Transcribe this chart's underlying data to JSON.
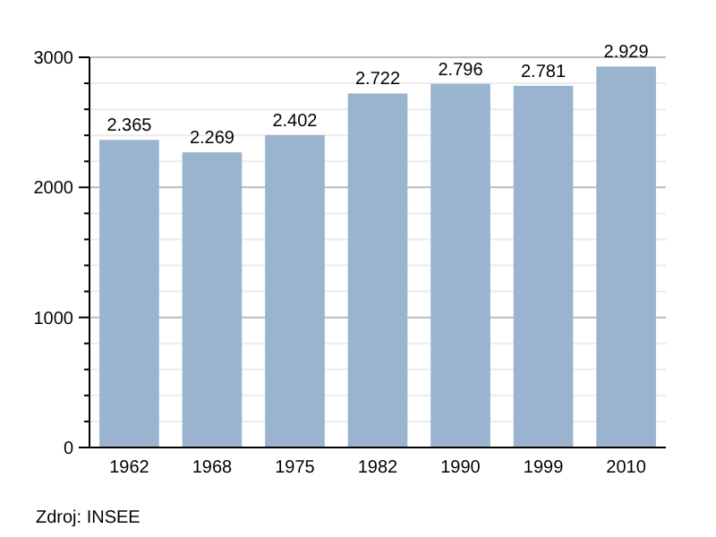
{
  "chart_data": {
    "type": "bar",
    "categories": [
      "1962",
      "1968",
      "1975",
      "1982",
      "1990",
      "1999",
      "2010"
    ],
    "values": [
      2365,
      2269,
      2402,
      2722,
      2796,
      2781,
      2929
    ],
    "value_labels": [
      "2.365",
      "2.269",
      "2.402",
      "2.722",
      "2.796",
      "2.781",
      "2.929"
    ],
    "color": "#9ab3cf",
    "ylim": [
      0,
      3000
    ],
    "yticks": [
      0,
      {
        "value": 200,
        "label": null
      },
      {
        "value": 400,
        "label": null
      },
      {
        "value": 600,
        "label": null
      },
      {
        "value": 800,
        "label": null
      },
      1000,
      {
        "value": 1200,
        "label": null
      },
      {
        "value": 1400,
        "label": null
      },
      {
        "value": 1600,
        "label": null
      },
      {
        "value": 1800,
        "label": null
      },
      2000,
      {
        "value": 2200,
        "label": null
      },
      {
        "value": 2400,
        "label": null
      },
      {
        "value": 2600,
        "label": null
      },
      {
        "value": 2800,
        "label": null
      },
      3000
    ],
    "grid": true,
    "annotations": [
      "Zdroj: INSEE"
    ]
  }
}
